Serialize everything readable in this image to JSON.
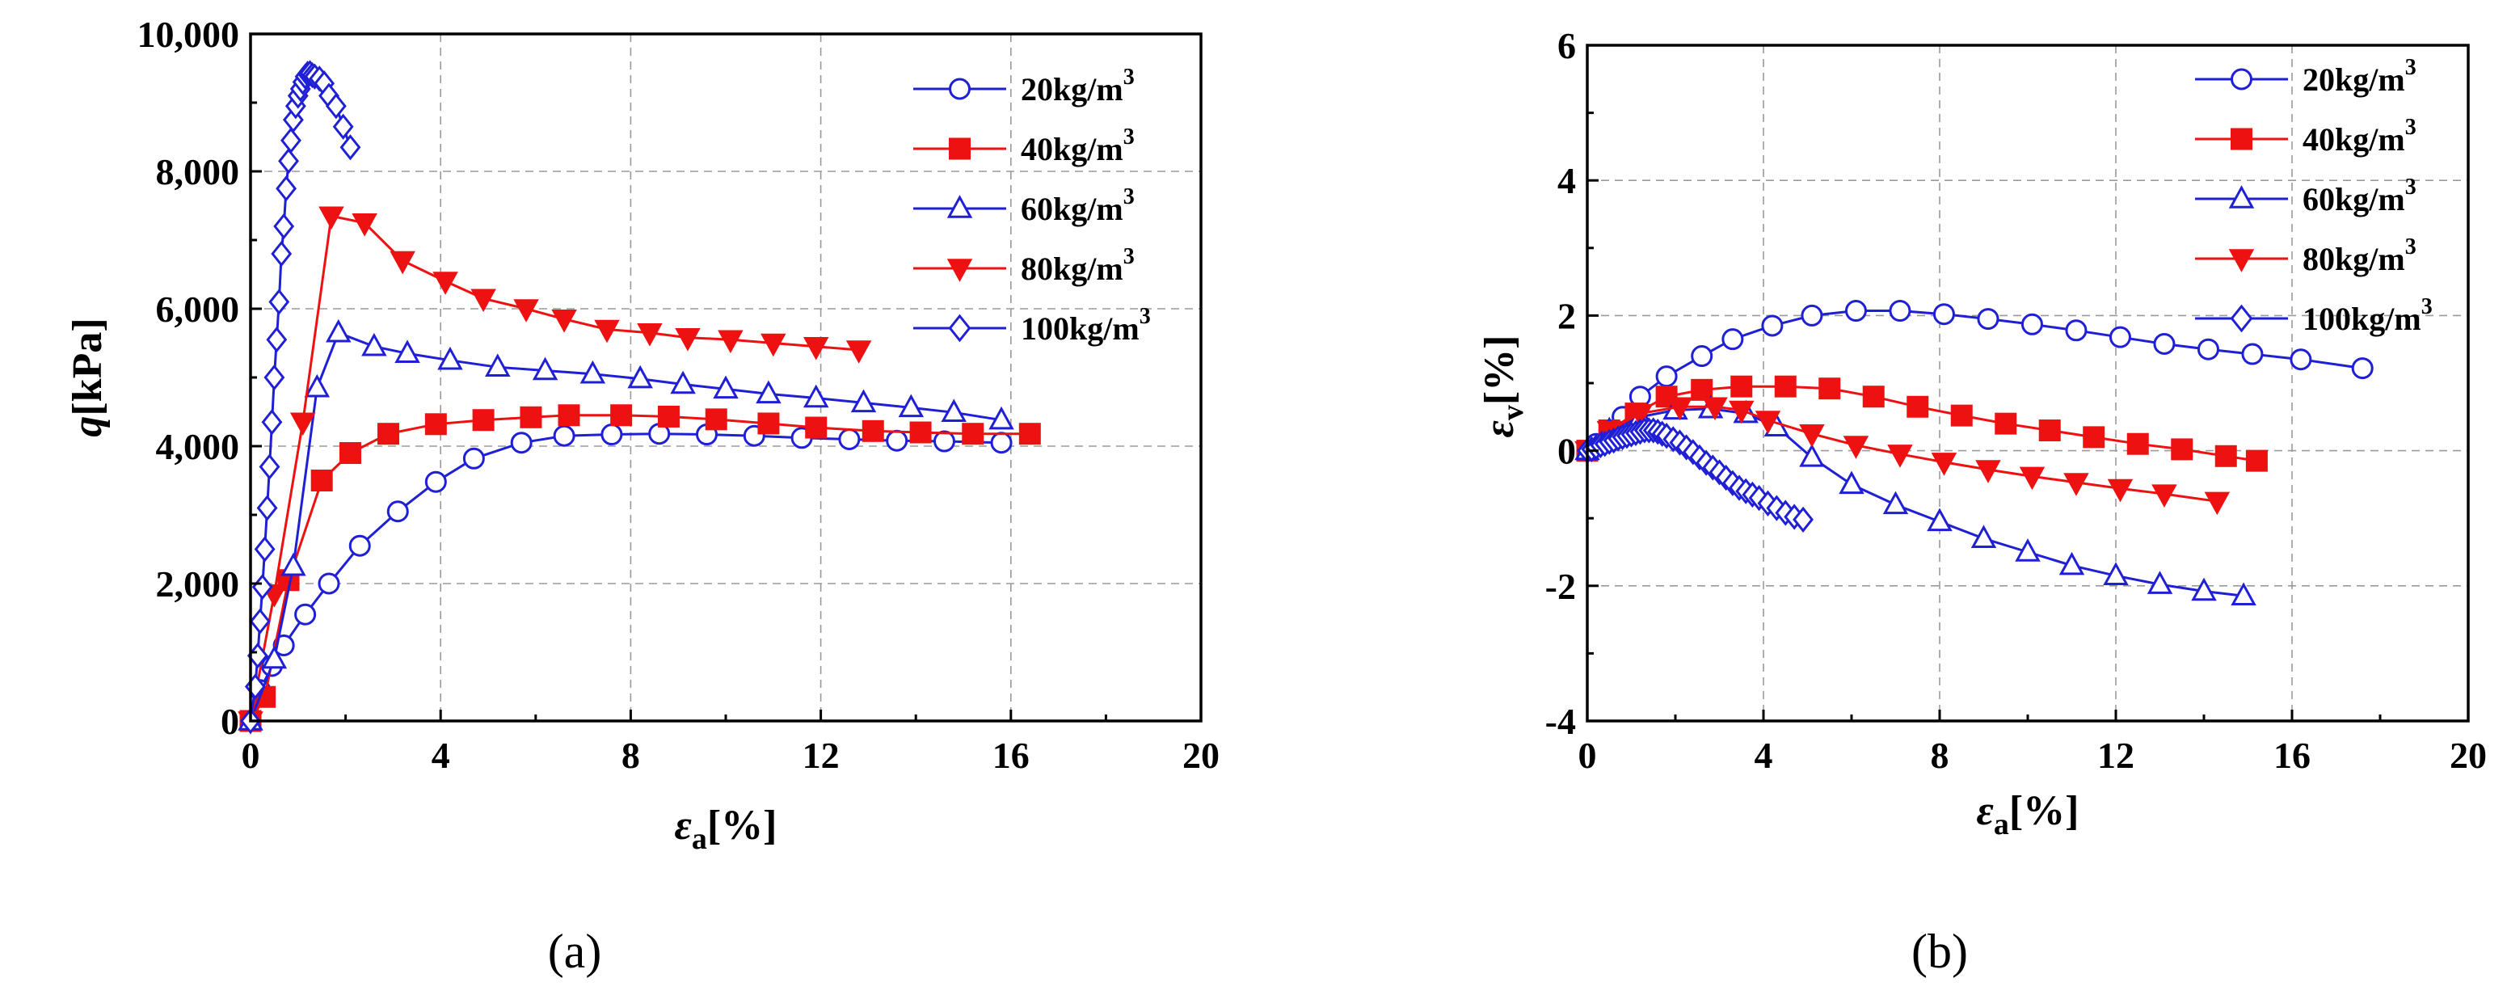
{
  "colors": {
    "blue": "#1f1fd6",
    "red": "#ee1111",
    "axis": "#000000",
    "grid": "#9a9a9a"
  },
  "chart_data": [
    {
      "panel_label": "(a)",
      "type": "line",
      "xlabel": {
        "symbol": "ε",
        "sub": "a",
        "unit": "[%]"
      },
      "ylabel": {
        "symbol": "q",
        "unit": "[kPa]"
      },
      "xlim": [
        0,
        20
      ],
      "ylim": [
        0,
        10000
      ],
      "xticks": [
        0,
        4,
        8,
        12,
        16,
        20
      ],
      "yticks": [
        0,
        2000,
        4000,
        6000,
        8000,
        10000
      ],
      "xtick_labels": [
        "0",
        "4",
        "8",
        "12",
        "16",
        "20"
      ],
      "ytick_labels": [
        "0",
        "2,000",
        "4,000",
        "6,000",
        "8,000",
        "10,000"
      ],
      "grid": true,
      "legend_position": "top-right",
      "series": [
        {
          "name": "20kg/m3",
          "label_base": "20kg/m",
          "label_sup": "3",
          "color": "blue",
          "marker": "circle",
          "x": [
            0,
            0.2,
            0.45,
            0.7,
            1.15,
            1.65,
            2.3,
            3.1,
            3.9,
            4.7,
            5.7,
            6.6,
            7.6,
            8.6,
            9.6,
            10.6,
            11.6,
            12.6,
            13.6,
            14.6,
            15.8
          ],
          "y": [
            0,
            450,
            800,
            1100,
            1550,
            2000,
            2550,
            3050,
            3480,
            3820,
            4050,
            4150,
            4170,
            4180,
            4170,
            4150,
            4120,
            4100,
            4080,
            4070,
            4050
          ]
        },
        {
          "name": "40kg/m3",
          "label_base": "40kg/m",
          "label_sup": "3",
          "color": "red",
          "marker": "square",
          "x": [
            0,
            0.3,
            0.8,
            1.5,
            2.1,
            2.9,
            3.9,
            4.9,
            5.9,
            6.7,
            7.8,
            8.8,
            9.8,
            10.9,
            11.9,
            13.1,
            14.1,
            15.2,
            16.4
          ],
          "y": [
            0,
            350,
            2050,
            3500,
            3900,
            4180,
            4320,
            4380,
            4420,
            4450,
            4450,
            4430,
            4390,
            4330,
            4270,
            4220,
            4200,
            4180,
            4180
          ]
        },
        {
          "name": "60kg/m3",
          "label_base": "60kg/m",
          "label_sup": "3",
          "color": "blue",
          "marker": "triangle",
          "x": [
            0,
            0.5,
            0.9,
            1.4,
            1.85,
            2.6,
            3.3,
            4.2,
            5.2,
            6.2,
            7.2,
            8.2,
            9.1,
            10.0,
            10.9,
            11.9,
            12.9,
            13.9,
            14.8,
            15.8
          ],
          "y": [
            0,
            900,
            2250,
            4850,
            5650,
            5450,
            5350,
            5250,
            5150,
            5100,
            5050,
            4980,
            4900,
            4830,
            4760,
            4700,
            4630,
            4560,
            4490,
            4380
          ]
        },
        {
          "name": "80kg/m3",
          "label_base": "80kg/m",
          "label_sup": "3",
          "color": "red",
          "marker": "triangle-down",
          "x": [
            0,
            0.5,
            1.1,
            1.7,
            2.4,
            3.2,
            4.1,
            4.9,
            5.8,
            6.6,
            7.5,
            8.4,
            9.2,
            10.1,
            11.0,
            11.9,
            12.8
          ],
          "y": [
            0,
            1850,
            4350,
            7350,
            7250,
            6700,
            6400,
            6150,
            6000,
            5850,
            5700,
            5650,
            5580,
            5550,
            5500,
            5450,
            5400
          ]
        },
        {
          "name": "100kg/m3",
          "label_base": "100kg/m",
          "label_sup": "3",
          "color": "blue",
          "marker": "diamond",
          "x": [
            0,
            0.1,
            0.15,
            0.2,
            0.25,
            0.3,
            0.35,
            0.4,
            0.45,
            0.5,
            0.55,
            0.6,
            0.65,
            0.7,
            0.75,
            0.8,
            0.85,
            0.9,
            0.95,
            1.0,
            1.05,
            1.1,
            1.15,
            1.2,
            1.25,
            1.3,
            1.35,
            1.45,
            1.55,
            1.65,
            1.8,
            1.95,
            2.1
          ],
          "y": [
            0,
            500,
            950,
            1450,
            1950,
            2500,
            3100,
            3700,
            4350,
            5000,
            5550,
            6100,
            6800,
            7200,
            7750,
            8150,
            8450,
            8750,
            8950,
            9100,
            9200,
            9300,
            9380,
            9420,
            9430,
            9400,
            9380,
            9350,
            9280,
            9100,
            8950,
            8650,
            8350
          ]
        }
      ]
    },
    {
      "panel_label": "(b)",
      "type": "line",
      "xlabel": {
        "symbol": "ε",
        "sub": "a",
        "unit": "[%]"
      },
      "ylabel": {
        "symbol": "ε",
        "sub": "v",
        "unit": "[%]"
      },
      "xlim": [
        0,
        20
      ],
      "ylim": [
        -4,
        6
      ],
      "xticks": [
        0,
        4,
        8,
        12,
        16,
        20
      ],
      "yticks": [
        -4,
        -2,
        0,
        2,
        4,
        6
      ],
      "xtick_labels": [
        "0",
        "4",
        "8",
        "12",
        "16",
        "20"
      ],
      "ytick_labels": [
        "-4",
        "-2",
        "0",
        "2",
        "4",
        "6"
      ],
      "grid": true,
      "legend_position": "top-right",
      "series": [
        {
          "name": "20kg/m3",
          "label_base": "20kg/m",
          "label_sup": "3",
          "color": "blue",
          "marker": "circle",
          "x": [
            0,
            0.2,
            0.5,
            0.8,
            1.2,
            1.8,
            2.6,
            3.3,
            4.2,
            5.1,
            6.1,
            7.1,
            8.1,
            9.1,
            10.1,
            11.1,
            12.1,
            13.1,
            14.1,
            15.1,
            16.2,
            17.6
          ],
          "y": [
            0,
            0.1,
            0.3,
            0.5,
            0.8,
            1.1,
            1.4,
            1.65,
            1.85,
            2.0,
            2.07,
            2.07,
            2.02,
            1.95,
            1.87,
            1.78,
            1.68,
            1.58,
            1.5,
            1.43,
            1.35,
            1.22
          ]
        },
        {
          "name": "40kg/m3",
          "label_base": "40kg/m",
          "label_sup": "3",
          "color": "red",
          "marker": "square",
          "x": [
            0,
            0.5,
            1.1,
            1.8,
            2.6,
            3.5,
            4.5,
            5.5,
            6.5,
            7.5,
            8.5,
            9.5,
            10.5,
            11.5,
            12.5,
            13.5,
            14.5,
            15.2
          ],
          "y": [
            0,
            0.3,
            0.55,
            0.8,
            0.9,
            0.95,
            0.95,
            0.92,
            0.8,
            0.65,
            0.52,
            0.4,
            0.3,
            0.2,
            0.1,
            0.02,
            -0.08,
            -0.15
          ]
        },
        {
          "name": "60kg/m3",
          "label_base": "60kg/m",
          "label_sup": "3",
          "color": "blue",
          "marker": "triangle",
          "x": [
            0,
            0.5,
            1.2,
            2.0,
            2.8,
            3.6,
            4.3,
            5.1,
            6.0,
            7.0,
            8.0,
            9.0,
            10.0,
            11.0,
            12.0,
            13.0,
            14.0,
            14.9
          ],
          "y": [
            0,
            0.3,
            0.5,
            0.6,
            0.62,
            0.55,
            0.35,
            -0.1,
            -0.5,
            -0.8,
            -1.05,
            -1.3,
            -1.5,
            -1.7,
            -1.85,
            -1.98,
            -2.08,
            -2.15
          ]
        },
        {
          "name": "80kg/m3",
          "label_base": "80kg/m",
          "label_sup": "3",
          "color": "red",
          "marker": "triangle-down",
          "x": [
            0,
            0.5,
            1.2,
            2.1,
            2.9,
            3.5,
            4.1,
            5.1,
            6.1,
            7.1,
            8.1,
            9.1,
            10.1,
            11.1,
            12.1,
            13.1,
            14.3
          ],
          "y": [
            0,
            0.3,
            0.55,
            0.65,
            0.65,
            0.6,
            0.45,
            0.25,
            0.08,
            -0.05,
            -0.17,
            -0.28,
            -0.38,
            -0.47,
            -0.56,
            -0.64,
            -0.75
          ]
        },
        {
          "name": "100kg/m3",
          "label_base": "100kg/m",
          "label_sup": "3",
          "color": "blue",
          "marker": "diamond",
          "x": [
            0,
            0.1,
            0.2,
            0.3,
            0.4,
            0.5,
            0.6,
            0.7,
            0.8,
            0.9,
            1.0,
            1.1,
            1.2,
            1.3,
            1.4,
            1.5,
            1.6,
            1.7,
            1.8,
            1.95,
            2.1,
            2.25,
            2.4,
            2.55,
            2.7,
            2.85,
            3.0,
            3.15,
            3.3,
            3.45,
            3.6,
            3.75,
            3.9,
            4.1,
            4.3,
            4.5,
            4.7,
            4.9
          ],
          "y": [
            0,
            0.02,
            0.05,
            0.08,
            0.1,
            0.13,
            0.15,
            0.18,
            0.2,
            0.22,
            0.24,
            0.26,
            0.28,
            0.3,
            0.3,
            0.3,
            0.28,
            0.25,
            0.22,
            0.17,
            0.12,
            0.05,
            -0.02,
            -0.1,
            -0.18,
            -0.25,
            -0.32,
            -0.4,
            -0.48,
            -0.55,
            -0.6,
            -0.65,
            -0.7,
            -0.78,
            -0.85,
            -0.92,
            -0.98,
            -1.02
          ]
        }
      ]
    }
  ]
}
